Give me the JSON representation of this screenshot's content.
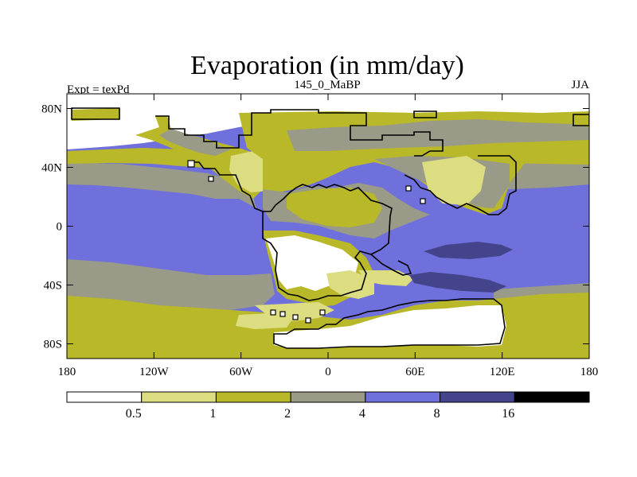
{
  "figure": {
    "title": "Evaporation (in mm/day)",
    "left_string": "Expt = texPd",
    "center_string": "145_0_MaBP",
    "right_string": "JJA"
  },
  "axes": {
    "x_ticks": [
      "180",
      "120W",
      "60W",
      "0",
      "60E",
      "120E",
      "180"
    ],
    "y_ticks": [
      "80N",
      "40N",
      "0",
      "40S",
      "80S"
    ],
    "x_values": [
      -180,
      -120,
      -60,
      0,
      60,
      120,
      180
    ],
    "y_values": [
      80,
      40,
      0,
      -40,
      -80
    ],
    "lon_range": [
      -180,
      180
    ],
    "lat_range": [
      -90,
      90
    ]
  },
  "colorbar": {
    "labels": [
      "0.5",
      "1",
      "2",
      "4",
      "8",
      "16"
    ],
    "levels": [
      0.5,
      1,
      2,
      4,
      8,
      16
    ],
    "colors": [
      "#ffffff",
      "#dcdc80",
      "#b8b828",
      "#9a9a88",
      "#7070dc",
      "#44448c",
      "#000000"
    ]
  },
  "field_colors": {
    "ocean_high": "#7070dc",
    "ocean_highest": "#44448c",
    "ocean_mid": "#9a9a88",
    "land_low": "#b8b828",
    "land_lowest": "#dcdc80",
    "dry": "#ffffff",
    "coastline": "#000000"
  }
}
